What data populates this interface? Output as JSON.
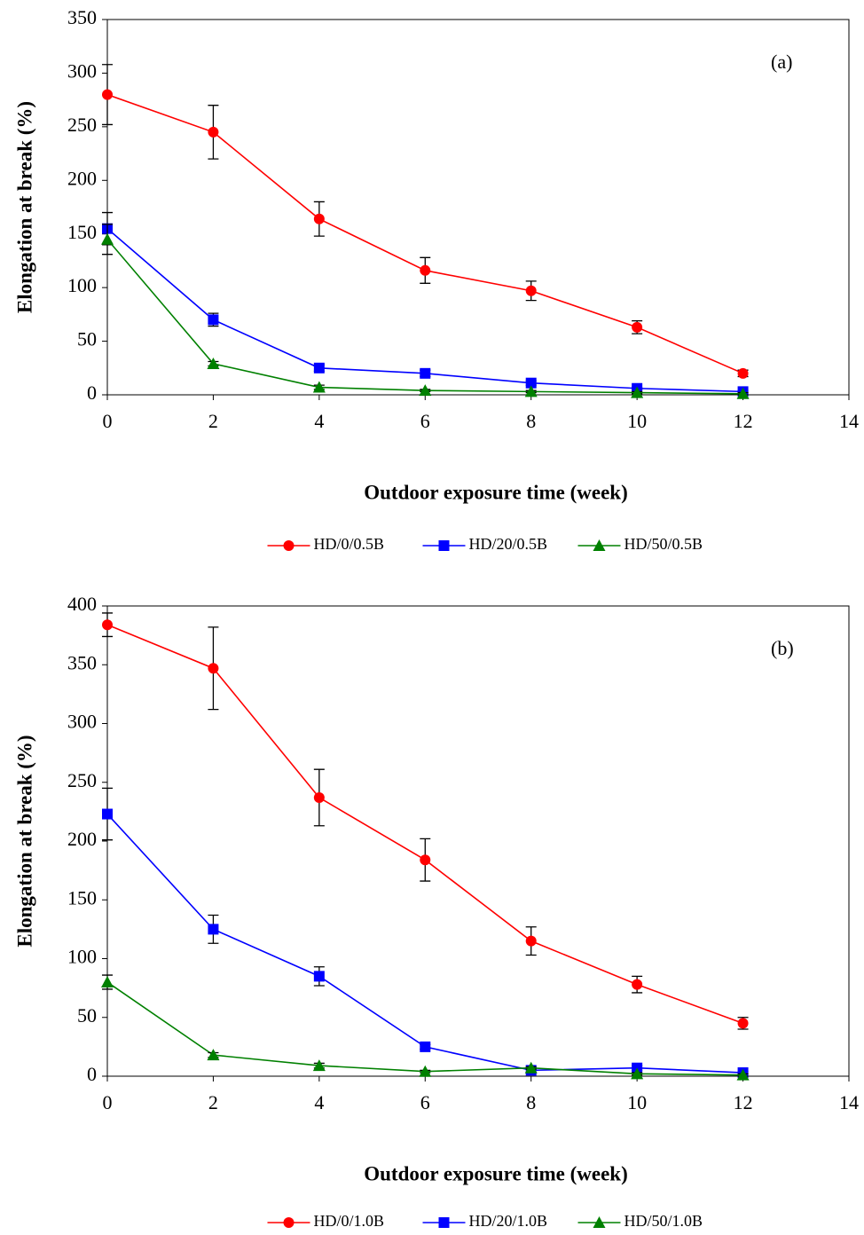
{
  "chart_data": [
    {
      "type": "line",
      "annotation": "(a)",
      "xlabel": "Outdoor exposure time (week)",
      "ylabel": "Elongation at break (%)",
      "x": [
        0,
        2,
        4,
        6,
        8,
        10,
        12
      ],
      "xlim": [
        0,
        14
      ],
      "xticks": [
        0,
        2,
        4,
        6,
        8,
        10,
        12,
        14
      ],
      "ylim": [
        0,
        350
      ],
      "yticks": [
        0,
        50,
        100,
        150,
        200,
        250,
        300,
        350
      ],
      "series": [
        {
          "name": "HD/0/0.5B",
          "color": "#ff0000",
          "marker": "circle",
          "values": [
            280,
            245,
            164,
            116,
            97,
            63,
            20
          ],
          "errors": [
            28,
            25,
            16,
            12,
            9,
            6,
            3
          ]
        },
        {
          "name": "HD/20/0.5B",
          "color": "#0000ff",
          "marker": "square",
          "values": [
            155,
            70,
            25,
            20,
            11,
            6,
            3
          ],
          "errors": [
            15,
            6,
            3,
            3,
            2,
            1,
            1
          ]
        },
        {
          "name": "HD/50/0.5B",
          "color": "#008000",
          "marker": "triangle",
          "values": [
            145,
            29,
            7,
            4,
            3,
            2,
            1
          ],
          "errors": [
            14,
            2,
            2,
            1,
            1,
            1,
            1
          ]
        }
      ]
    },
    {
      "type": "line",
      "annotation": "(b)",
      "xlabel": "Outdoor exposure time (week)",
      "ylabel": "Elongation at break (%)",
      "x": [
        0,
        2,
        4,
        6,
        8,
        10,
        12
      ],
      "xlim": [
        0,
        14
      ],
      "xticks": [
        0,
        2,
        4,
        6,
        8,
        10,
        12,
        14
      ],
      "ylim": [
        0,
        400
      ],
      "yticks": [
        0,
        50,
        100,
        150,
        200,
        250,
        300,
        350,
        400
      ],
      "series": [
        {
          "name": "HD/0/1.0B",
          "color": "#ff0000",
          "marker": "circle",
          "values": [
            384,
            347,
            237,
            184,
            115,
            78,
            45
          ],
          "errors": [
            10,
            35,
            24,
            18,
            12,
            7,
            5
          ]
        },
        {
          "name": "HD/20/1.0B",
          "color": "#0000ff",
          "marker": "square",
          "values": [
            223,
            125,
            85,
            25,
            5,
            7,
            3
          ],
          "errors": [
            22,
            12,
            8,
            2,
            2,
            2,
            1
          ]
        },
        {
          "name": "HD/50/1.0B",
          "color": "#008000",
          "marker": "triangle",
          "values": [
            80,
            18,
            9,
            4,
            7,
            2,
            1
          ],
          "errors": [
            6,
            2,
            2,
            1,
            1,
            1,
            1
          ]
        }
      ]
    }
  ]
}
